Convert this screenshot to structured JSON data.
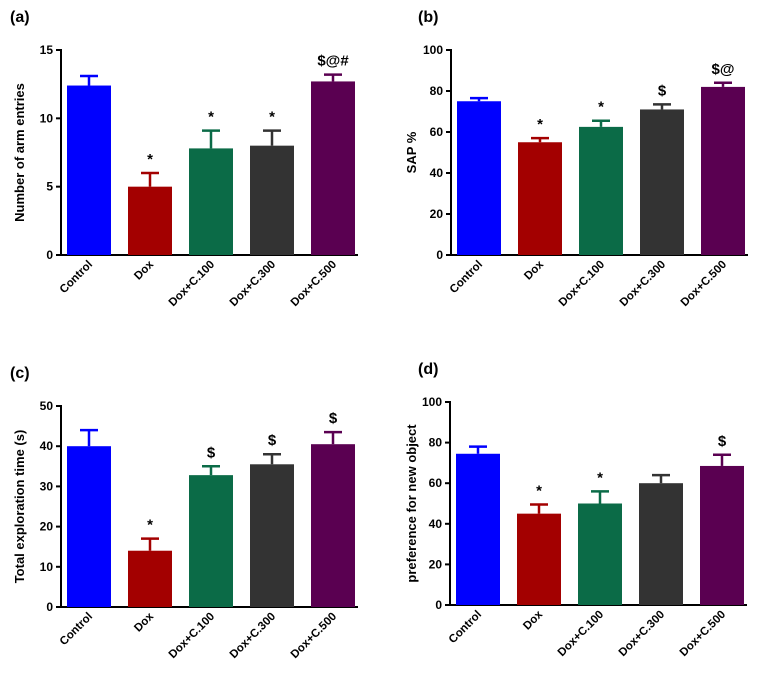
{
  "figure": {
    "colors": [
      "#0000ff",
      "#a30000",
      "#0b6b47",
      "#333333",
      "#5a0051"
    ]
  },
  "chart_data": [
    {
      "type": "bar",
      "panel_label": "(a)",
      "ylabel": "Number of arm entries",
      "categories": [
        "Control",
        "Dox",
        "Dox+C.100",
        "Dox+C.300",
        "Dox+C.500"
      ],
      "values": [
        12.4,
        5.0,
        7.8,
        8.0,
        12.7
      ],
      "errors": [
        0.7,
        1.0,
        1.3,
        1.1,
        0.5
      ],
      "annotations": [
        "",
        "*",
        "*",
        "*",
        "$@#"
      ],
      "ylim": [
        0,
        15
      ],
      "yticks": [
        0,
        5,
        10,
        15
      ]
    },
    {
      "type": "bar",
      "panel_label": "(b)",
      "ylabel": "SAP %",
      "categories": [
        "Control",
        "Dox",
        "Dox+C.100",
        "Dox+C.300",
        "Dox+C.500"
      ],
      "values": [
        75.0,
        55.0,
        62.5,
        71.0,
        82.0
      ],
      "errors": [
        1.5,
        2.0,
        3.0,
        2.5,
        2.0
      ],
      "annotations": [
        "",
        "*",
        "*",
        "$",
        "$@"
      ],
      "ylim": [
        0,
        100
      ],
      "yticks": [
        0,
        20,
        40,
        60,
        80,
        100
      ]
    },
    {
      "type": "bar",
      "panel_label": "(c)",
      "ylabel": "Total exploration time (s)",
      "categories": [
        "Control",
        "Dox",
        "Dox+C.100",
        "Dox+C.300",
        "Dox+C.500"
      ],
      "values": [
        40.0,
        14.0,
        32.8,
        35.5,
        40.5
      ],
      "errors": [
        4.0,
        3.0,
        2.2,
        2.5,
        3.0
      ],
      "annotations": [
        "",
        "*",
        "$",
        "$",
        "$"
      ],
      "ylim": [
        0,
        50
      ],
      "yticks": [
        0,
        10,
        20,
        30,
        40,
        50
      ]
    },
    {
      "type": "bar",
      "panel_label": "(d)",
      "ylabel": "preference for new object",
      "categories": [
        "Control",
        "Dox",
        "Dox+C.100",
        "Dox+C.300",
        "Dox+C.500"
      ],
      "values": [
        74.5,
        45.0,
        50.0,
        60.0,
        68.5
      ],
      "errors": [
        3.5,
        4.5,
        6.0,
        4.0,
        5.5
      ],
      "annotations": [
        "",
        "*",
        "*",
        "",
        "$"
      ],
      "ylim": [
        0,
        100
      ],
      "yticks": [
        0,
        20,
        40,
        60,
        80,
        100
      ]
    }
  ]
}
